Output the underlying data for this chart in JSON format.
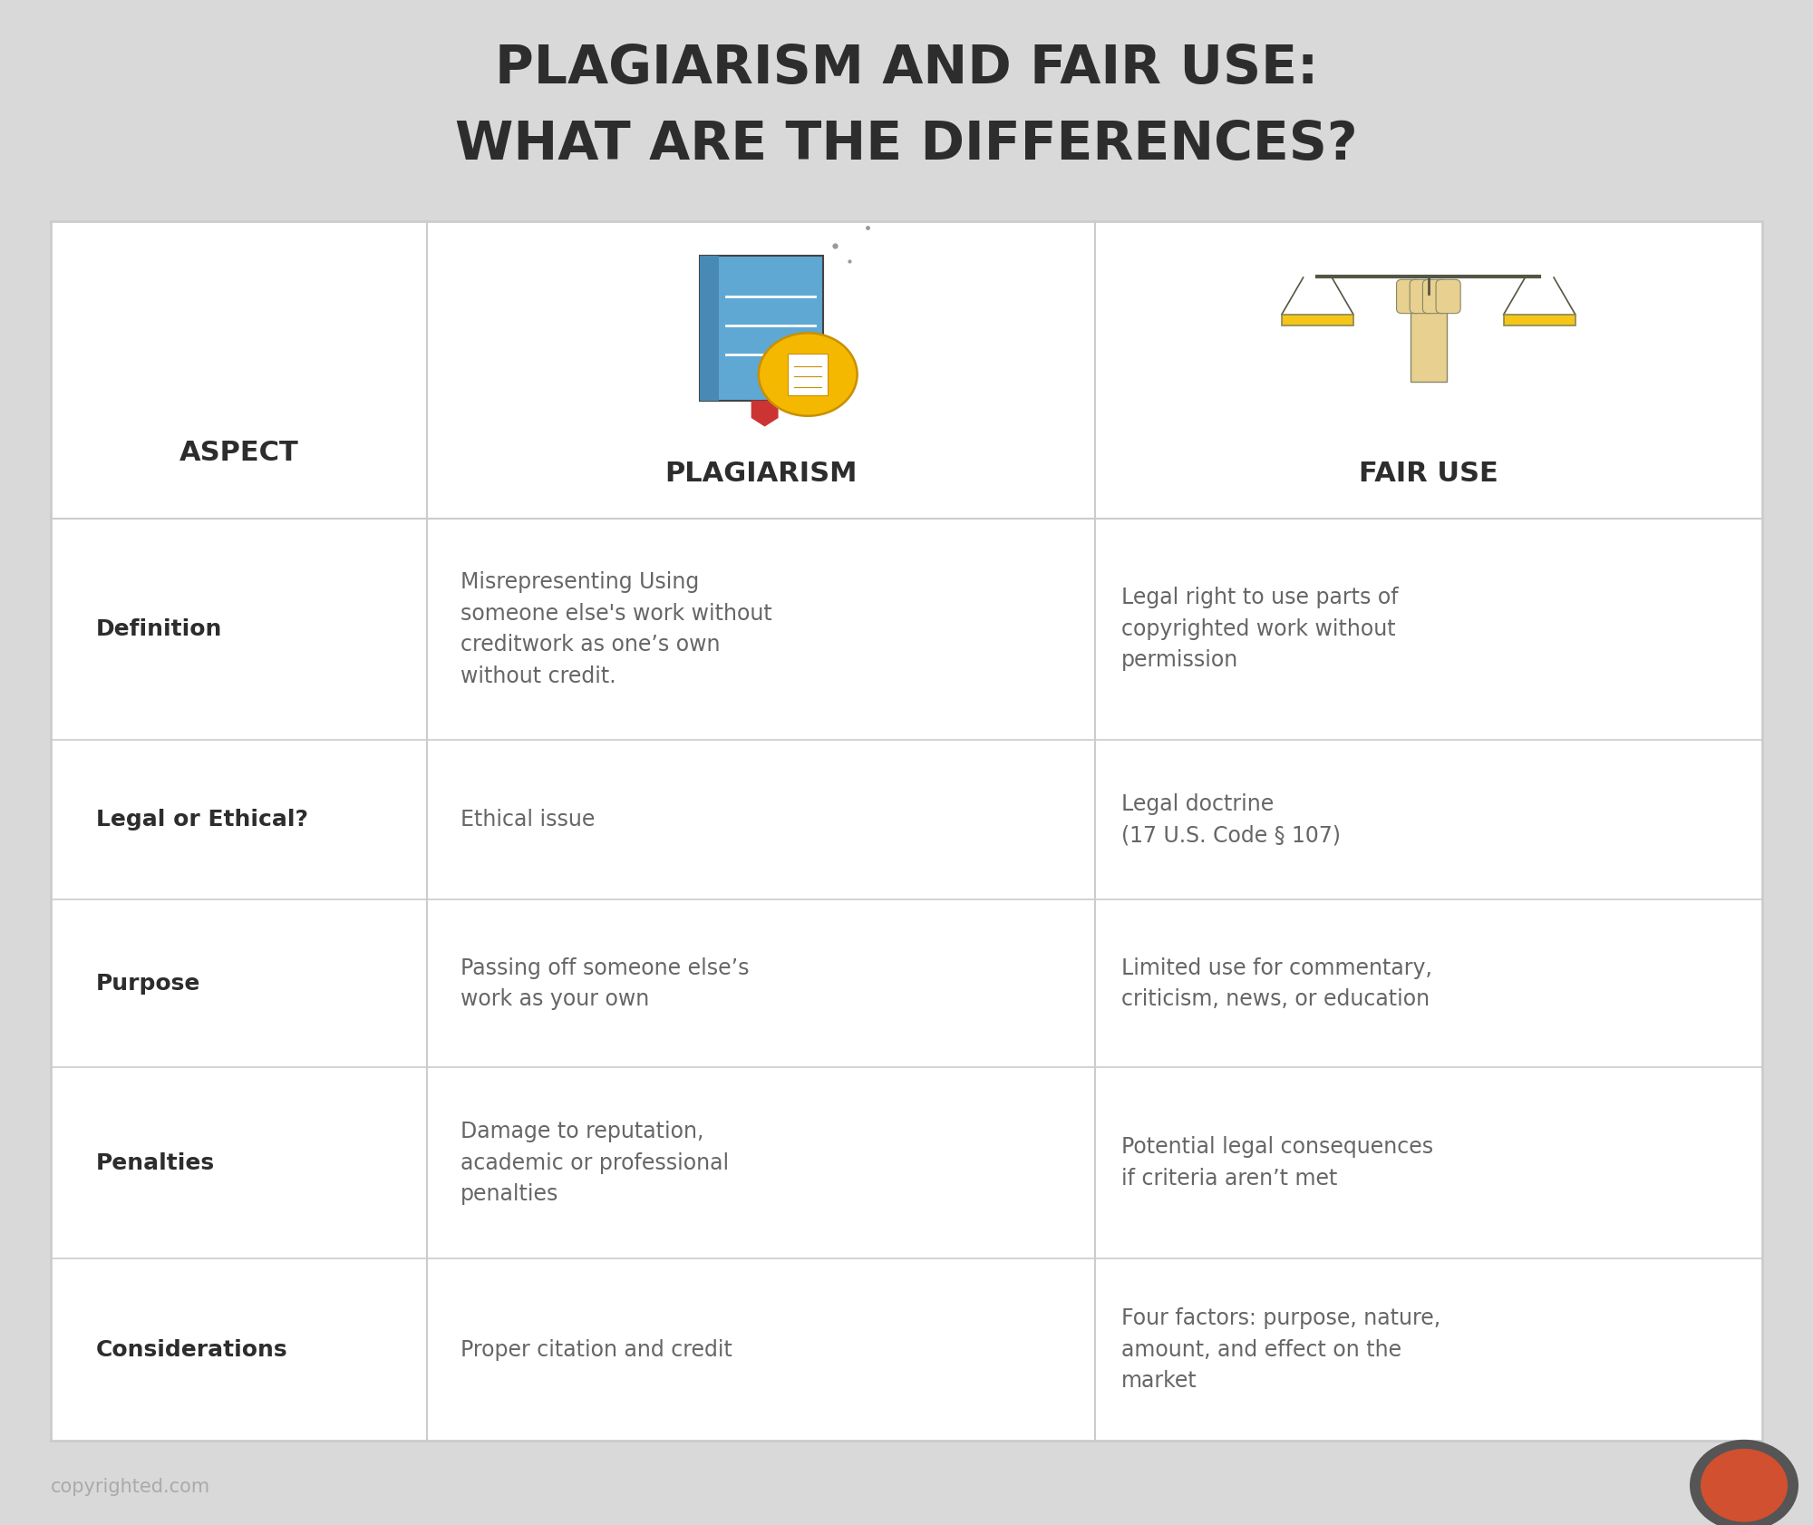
{
  "title_line1": "PLAGIARISM AND FAIR USE:",
  "title_line2": "WHAT ARE THE DIFFERENCES?",
  "bg_color": "#d9d9d9",
  "table_bg": "#ffffff",
  "title_color": "#2d2d2d",
  "header_color": "#2d2d2d",
  "aspect_color": "#2d2d2d",
  "cell_text_color": "#666666",
  "divider_color": "#cccccc",
  "col_border_color": "#cccccc",
  "footer_text": "copyrighted.com",
  "footer_color": "#aaaaaa",
  "columns": [
    "ASPECT",
    "PLAGIARISM",
    "FAIR USE"
  ],
  "rows": [
    {
      "aspect": "Definition",
      "plagiarism": "Misrepresenting Using\nsomeone else's work without\ncreditwork as one’s own\nwithout credit.",
      "fair_use": "Legal right to use parts of\ncopyrighted work without\npermission"
    },
    {
      "aspect": "Legal or Ethical?",
      "plagiarism": "Ethical issue",
      "fair_use": "Legal doctrine\n(17 U.S. Code § 107)"
    },
    {
      "aspect": "Purpose",
      "plagiarism": "Passing off someone else’s\nwork as your own",
      "fair_use": "Limited use for commentary,\ncriticism, news, or education"
    },
    {
      "aspect": "Penalties",
      "plagiarism": "Damage to reputation,\nacademic or professional\npenalties",
      "fair_use": "Potential legal consequences\nif criteria aren’t met"
    },
    {
      "aspect": "Considerations",
      "plagiarism": "Proper citation and credit",
      "fair_use": "Four factors: purpose, nature,\namount, and effect on the\nmarket"
    }
  ],
  "copyright_circle_color": "#d05030",
  "copyright_circle_border": "#555555",
  "title_fontsize": 42,
  "header_fontsize": 22,
  "aspect_fontsize": 18,
  "cell_fontsize": 17,
  "footer_fontsize": 15
}
